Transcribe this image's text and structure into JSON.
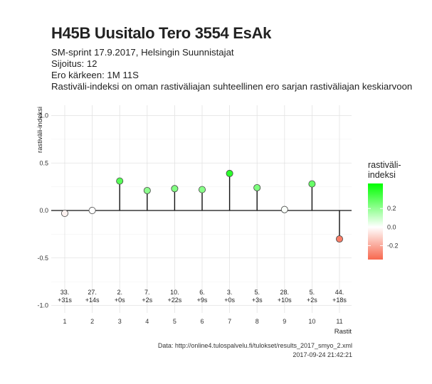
{
  "header": {
    "title": "H45B Uusitalo Tero 3554 EsAk",
    "subtitle_lines": [
      "SM-sprint 17.9.2017, Helsingin Suunnistajat",
      "Sijoitus: 12",
      "Ero kärkeen: 1M 11S",
      "Rastiväli-indeksi on oman rastiväliajan suhteellinen ero sarjan rastiväliajan keskiarvoon"
    ]
  },
  "chart_data": {
    "type": "lollipop",
    "xlabel": "Rastit",
    "ylabel": "rastiväli-indeksi",
    "x_ticks": [
      "1",
      "2",
      "3",
      "4",
      "5",
      "6",
      "7",
      "8",
      "9",
      "10",
      "11"
    ],
    "y_ticks": [
      "1.0",
      "0.5",
      "0.0",
      "-0.5",
      "-1.0"
    ],
    "ylim": [
      -1.0,
      1.0
    ],
    "grid": true,
    "points": [
      {
        "x": 1,
        "y": -0.03,
        "rank": "33.",
        "diff": "+31s"
      },
      {
        "x": 2,
        "y": 0.0,
        "rank": "27.",
        "diff": "+14s"
      },
      {
        "x": 3,
        "y": 0.31,
        "rank": "2.",
        "diff": "+0s"
      },
      {
        "x": 4,
        "y": 0.21,
        "rank": "7.",
        "diff": "+2s"
      },
      {
        "x": 5,
        "y": 0.23,
        "rank": "10.",
        "diff": "+22s"
      },
      {
        "x": 6,
        "y": 0.22,
        "rank": "6.",
        "diff": "+9s"
      },
      {
        "x": 7,
        "y": 0.39,
        "rank": "3.",
        "diff": "+0s"
      },
      {
        "x": 8,
        "y": 0.24,
        "rank": "5.",
        "diff": "+3s"
      },
      {
        "x": 9,
        "y": 0.01,
        "rank": "28.",
        "diff": "+10s"
      },
      {
        "x": 10,
        "y": 0.28,
        "rank": "5.",
        "diff": "+2s"
      },
      {
        "x": 11,
        "y": -0.3,
        "rank": "44.",
        "diff": "+18s"
      }
    ],
    "legend": {
      "title": "rastiväli-\nindeksi",
      "ticks": [
        "0.2",
        "0.0",
        "-0.2"
      ],
      "range": [
        -0.35,
        0.47
      ],
      "color_high": "#00ff00",
      "color_mid": "#ffffff",
      "color_low": "#f7684f",
      "placement": "right"
    }
  },
  "caption": {
    "line1": "Data: http://online4.tulospalvelu.fi/tulokset/results_2017_smyo_2.xml",
    "line2": "2017-09-24 21:42:21"
  }
}
